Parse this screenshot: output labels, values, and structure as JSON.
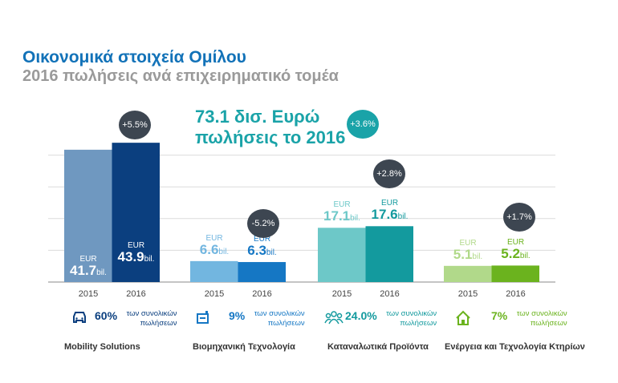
{
  "title": "Οικονομικά στοιχεία Ομίλου",
  "subtitle": "2016 πωλήσεις ανά επιχειρηματικό τομέα",
  "headline": {
    "line1": "73.1 δισ. Ευρώ",
    "line2": "πωλήσεις το 2016",
    "change": "+3.6%",
    "color": "#1aa3a8"
  },
  "chart_data": {
    "type": "bar",
    "categories": [
      "Mobility Solutions",
      "Βιομηχανική Τεχνολογία",
      "Καταναλωτικά Προϊόντα",
      "Ενέργεια και Τεχνολογία Κτηρίων"
    ],
    "x_ticks": [
      "2015",
      "2016"
    ],
    "currency": "EUR",
    "unit": "bil.",
    "ylim": [
      0,
      45
    ],
    "grid": true,
    "groups": [
      {
        "name": "Mobility Solutions",
        "values": [
          {
            "year": "2015",
            "value": 41.7,
            "label": "41.7"
          },
          {
            "year": "2016",
            "value": 43.9,
            "label": "43.9"
          }
        ],
        "change": "+5.5%",
        "colors": [
          "#6f98c0",
          "#0b3f7f"
        ],
        "share": "60%",
        "share_text": "των συνολικών πωλήσεων",
        "icon": "car-icon",
        "accent": "#0b3f7f"
      },
      {
        "name": "Βιομηχανική Τεχνολογία",
        "values": [
          {
            "year": "2015",
            "value": 6.6,
            "label": "6.6"
          },
          {
            "year": "2016",
            "value": 6.3,
            "label": "6.3"
          }
        ],
        "change": "-5.2%",
        "colors": [
          "#72b6e0",
          "#1577c4"
        ],
        "share": "9%",
        "share_text": "των συνολικών πωλήσεων",
        "icon": "factory-icon",
        "accent": "#1577c4"
      },
      {
        "name": "Καταναλωτικά Προϊόντα",
        "values": [
          {
            "year": "2015",
            "value": 17.1,
            "label": "17.1"
          },
          {
            "year": "2016",
            "value": 17.6,
            "label": "17.6"
          }
        ],
        "change": "+2.8%",
        "colors": [
          "#6dc8c8",
          "#139a9e"
        ],
        "share": "24.0%",
        "share_text": "των συνολικών πωλήσεων",
        "icon": "people-icon",
        "accent": "#139a9e"
      },
      {
        "name": "Ενέργεια και Τεχνολογία Κτηρίων",
        "values": [
          {
            "year": "2015",
            "value": 5.1,
            "label": "5.1"
          },
          {
            "year": "2016",
            "value": 5.2,
            "label": "5.2"
          }
        ],
        "change": "+1.7%",
        "colors": [
          "#b1d98a",
          "#6bb31e"
        ],
        "share": "7%",
        "share_text": "των συνολικών πωλήσεων",
        "icon": "house-icon",
        "accent": "#6bb31e"
      }
    ]
  }
}
